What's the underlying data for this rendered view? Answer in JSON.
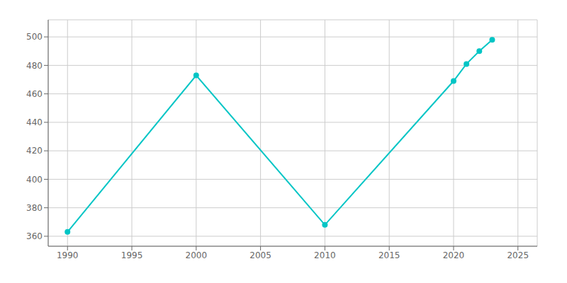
{
  "chart_data": {
    "type": "line",
    "x": [
      1990,
      2000,
      2010,
      2020,
      2021,
      2022,
      2023
    ],
    "values": [
      363,
      473,
      368,
      469,
      481,
      490,
      498
    ],
    "color": "#00C5C5",
    "marker": "circle",
    "xlim": [
      1988.5,
      2026.5
    ],
    "ylim": [
      353,
      512
    ],
    "xticks": [
      1990,
      1995,
      2000,
      2005,
      2010,
      2015,
      2020,
      2025
    ],
    "yticks": [
      360,
      380,
      400,
      420,
      440,
      460,
      480,
      500
    ],
    "grid": true
  }
}
